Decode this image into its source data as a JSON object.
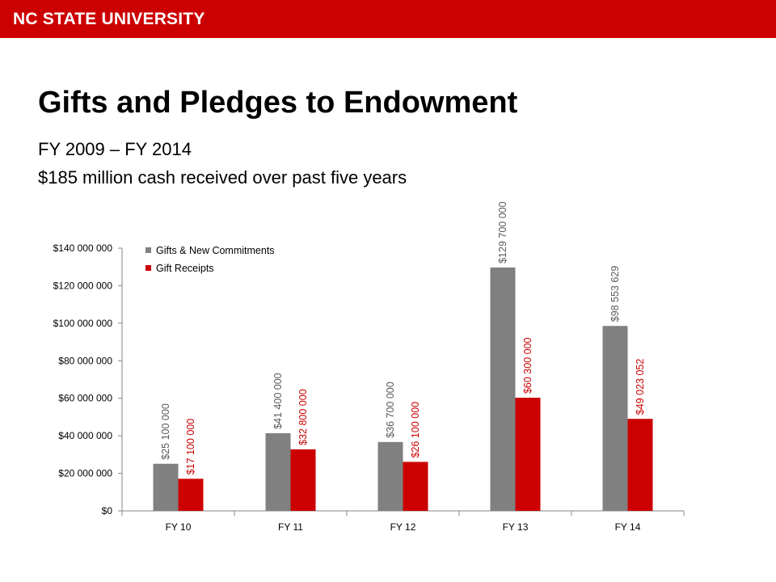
{
  "header": {
    "brand": "NC STATE UNIVERSITY",
    "brand_color": "#cc0000"
  },
  "slide": {
    "title": "Gifts and Pledges to Endowment",
    "subtitle_1": "FY 2009 – FY 2014",
    "subtitle_2": "$185 million cash received over past five years"
  },
  "chart_data": {
    "type": "bar",
    "categories": [
      "FY 10",
      "FY 11",
      "FY 12",
      "FY 13",
      "FY 14"
    ],
    "series": [
      {
        "name": "Gifts & New Commitments",
        "color": "#808080",
        "label_color": "#595959",
        "values": [
          25100000,
          41400000,
          36700000,
          129700000,
          98553629
        ],
        "labels": [
          "$25 100 000",
          "$41 400 000",
          "$36 700 000",
          "$129 700 000",
          "$98 553 629"
        ]
      },
      {
        "name": "Gift Receipts",
        "color": "#cc0000",
        "label_color": "#cc0000",
        "values": [
          17100000,
          32800000,
          26100000,
          60300000,
          49023052
        ],
        "labels": [
          "$17 100 000",
          "$32 800 000",
          "$26 100 000",
          "$60 300 000",
          "$49 023 052"
        ]
      }
    ],
    "ylim": [
      0,
      140000000
    ],
    "y_ticks": [
      0,
      20000000,
      40000000,
      60000000,
      80000000,
      100000000,
      120000000,
      140000000
    ],
    "y_tick_labels": [
      "$0",
      "$20 000 000",
      "$40 000 000",
      "$60 000 000",
      "$80 000 000",
      "$100 000 000",
      "$120 000 000",
      "$140 000 000"
    ],
    "legend_position": "top-left",
    "data_label_rotation": "vertical",
    "grid": false
  }
}
